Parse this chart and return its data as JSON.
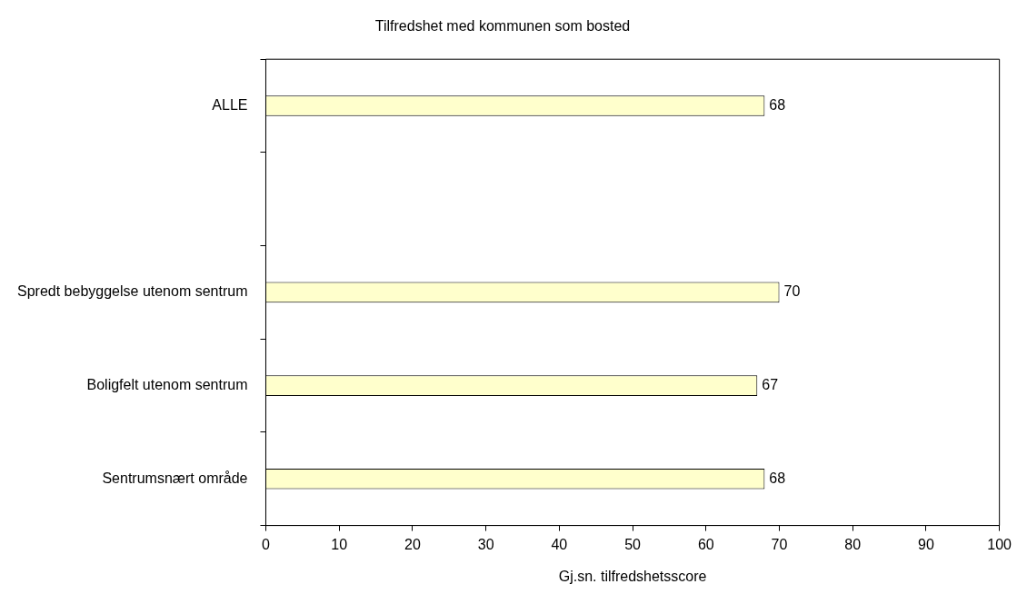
{
  "chart_data": {
    "type": "bar",
    "orientation": "horizontal",
    "title": "Tilfredshet med kommunen som bosted",
    "xlabel": "Gj.sn. tilfredshetsscore",
    "categories": [
      "ALLE",
      null,
      "Spredt bebyggelse utenom sentrum",
      "Boligfelt utenom sentrum",
      "Sentrumsnært område"
    ],
    "values": [
      68,
      null,
      70,
      67,
      68
    ],
    "color": "#ffffcc",
    "xlim": [
      0,
      100
    ],
    "xticks": [
      0,
      10,
      20,
      30,
      40,
      50,
      60,
      70,
      80,
      90,
      100
    ],
    "grid": false,
    "legend": false,
    "data_labels": true
  }
}
